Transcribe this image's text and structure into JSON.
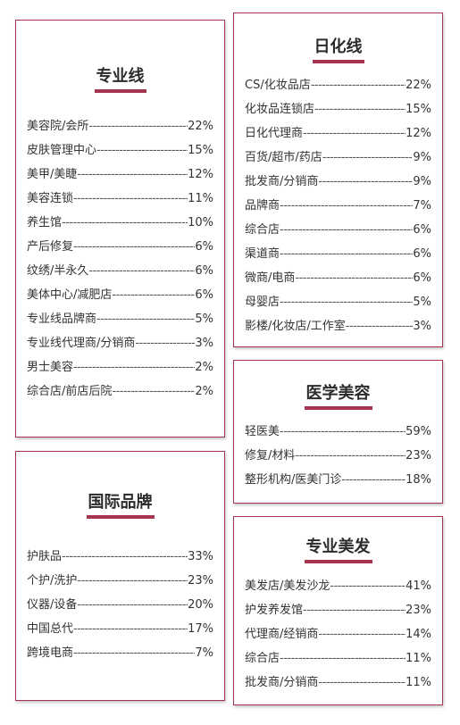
{
  "cards": {
    "pro": {
      "title": "专业线",
      "rows": [
        {
          "name": "美容院/会所",
          "pct": "22%"
        },
        {
          "name": "皮肤管理中心",
          "pct": "15%"
        },
        {
          "name": "美甲/美睫",
          "pct": "12%"
        },
        {
          "name": "美容连锁",
          "pct": "11%"
        },
        {
          "name": "养生馆",
          "pct": "10%"
        },
        {
          "name": "产后修复",
          "pct": "6%"
        },
        {
          "name": "纹绣/半永久",
          "pct": "6%"
        },
        {
          "name": "美体中心/减肥店",
          "pct": "6%"
        },
        {
          "name": "专业线品牌商",
          "pct": "5%"
        },
        {
          "name": "专业线代理商/分销商",
          "pct": "3%"
        },
        {
          "name": "男士美容",
          "pct": "2%"
        },
        {
          "name": "综合店/前店后院",
          "pct": "2%"
        }
      ]
    },
    "daily": {
      "title": "日化线",
      "rows": [
        {
          "name": "CS/化妆品店",
          "pct": "22%"
        },
        {
          "name": "化妆品连锁店",
          "pct": "15%"
        },
        {
          "name": "日化代理商",
          "pct": "12%"
        },
        {
          "name": "百货/超市/药店",
          "pct": "9%"
        },
        {
          "name": "批发商/分销商",
          "pct": "9%"
        },
        {
          "name": "品牌商",
          "pct": "7%"
        },
        {
          "name": "综合店",
          "pct": "6%"
        },
        {
          "name": "渠道商",
          "pct": "6%"
        },
        {
          "name": "微商/电商",
          "pct": "6%"
        },
        {
          "name": "母婴店",
          "pct": "5%"
        },
        {
          "name": "影楼/化妆店/工作室",
          "pct": "3%"
        }
      ]
    },
    "med": {
      "title": "医学美容",
      "rows": [
        {
          "name": "轻医美",
          "pct": "59%"
        },
        {
          "name": "修复/材料",
          "pct": "23%"
        },
        {
          "name": "整形机构/医美门诊",
          "pct": "18%"
        }
      ]
    },
    "intl": {
      "title": "国际品牌",
      "rows": [
        {
          "name": "护肤品",
          "pct": "33%"
        },
        {
          "name": "个护/洗护",
          "pct": "23%"
        },
        {
          "name": "仪器/设备",
          "pct": "20%"
        },
        {
          "name": "中国总代",
          "pct": "17%"
        },
        {
          "name": "跨境电商",
          "pct": "7%"
        }
      ]
    },
    "hair": {
      "title": "专业美发",
      "rows": [
        {
          "name": "美发店/美发沙龙",
          "pct": "41%"
        },
        {
          "name": "护发养发馆",
          "pct": "23%"
        },
        {
          "name": "代理商/经销商",
          "pct": "14%"
        },
        {
          "name": "综合店",
          "pct": "11%"
        },
        {
          "name": "批发商/分销商",
          "pct": "11%"
        }
      ]
    }
  },
  "colors": {
    "accent": "#a5344e",
    "text": "#333333",
    "title_text": "#2b2b2b"
  }
}
